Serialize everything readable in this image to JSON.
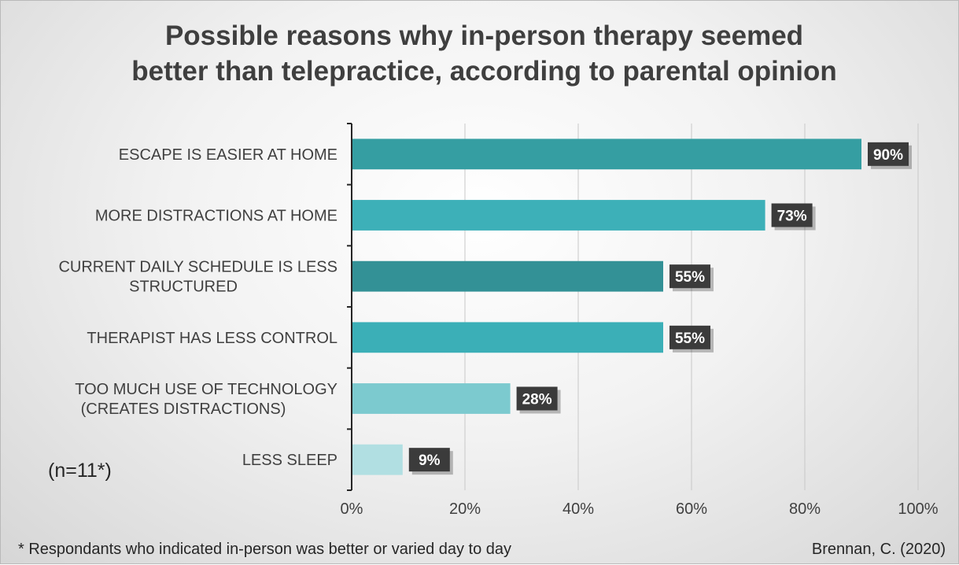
{
  "chart_data": {
    "type": "bar",
    "orientation": "horizontal",
    "title_lines": [
      "Possible reasons why in-person therapy seemed",
      "better than telepractice, according to parental opinion"
    ],
    "categories": [
      [
        "ESCAPE IS EASIER AT HOME"
      ],
      [
        "MORE DISTRACTIONS AT HOME"
      ],
      [
        "CURRENT DAILY SCHEDULE IS LESS",
        "STRUCTURED"
      ],
      [
        "THERAPIST HAS LESS CONTROL"
      ],
      [
        "TOO MUCH USE OF TECHNOLOGY",
        "(CREATES DISTRACTIONS)"
      ],
      [
        "LESS SLEEP"
      ]
    ],
    "values": [
      90,
      73,
      55,
      55,
      28,
      9
    ],
    "data_labels": [
      "90%",
      "73%",
      "55%",
      "55%",
      "28%",
      "9%"
    ],
    "bar_colors": [
      "#359ea2",
      "#3db0b8",
      "#339196",
      "#3bafb7",
      "#7ccacf",
      "#b1dfe2"
    ],
    "xlim": [
      0,
      100
    ],
    "x_ticks": [
      0,
      20,
      40,
      60,
      80,
      100
    ],
    "x_tick_labels": [
      "0%",
      "20%",
      "40%",
      "60%",
      "80%",
      "100%"
    ],
    "grid": true,
    "legend": "none",
    "xlabel": "",
    "ylabel": ""
  },
  "annotations": {
    "sample_size": "(n=11*)",
    "footnote": "* Respondants who indicated in-person was better or varied day to day",
    "source": "Brennan, C. (2020)"
  }
}
